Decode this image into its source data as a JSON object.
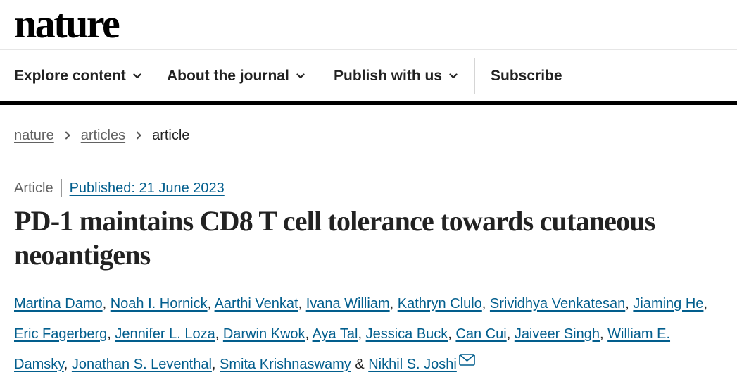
{
  "brand": {
    "logo": "nature"
  },
  "nav": {
    "items": [
      {
        "label": "Explore content",
        "icon": "chevron-down-icon"
      },
      {
        "label": "About the journal",
        "icon": "chevron-down-icon"
      },
      {
        "label": "Publish with us",
        "icon": "chevron-down-icon"
      },
      {
        "label": "Subscribe"
      }
    ]
  },
  "breadcrumb": {
    "items": [
      {
        "label": "nature"
      },
      {
        "label": "articles"
      },
      {
        "label": "article"
      }
    ]
  },
  "article": {
    "type": "Article",
    "published": "Published: 21 June 2023",
    "title": "PD-1 maintains CD8 T cell tolerance towards cutaneous neoantigens",
    "authors": [
      "Martina Damo",
      "Noah I. Hornick",
      "Aarthi Venkat",
      "Ivana William",
      "Kathryn Clulo",
      "Srividhya Venkatesan",
      "Jiaming He",
      "Eric Fagerberg",
      "Jennifer L. Loza",
      "Darwin Kwok",
      "Aya Tal",
      "Jessica Buck",
      "Can Cui",
      "Jaiveer Singh",
      "William E. Damsky",
      "Jonathan S. Leventhal",
      "Smita Krishnaswamy",
      "Nikhil S. Joshi"
    ],
    "separator": ",",
    "last_joiner": "&",
    "corresponding_icon": "mail-icon"
  },
  "colors": {
    "link": "#025e8d",
    "text": "#222222",
    "muted": "#626262"
  }
}
